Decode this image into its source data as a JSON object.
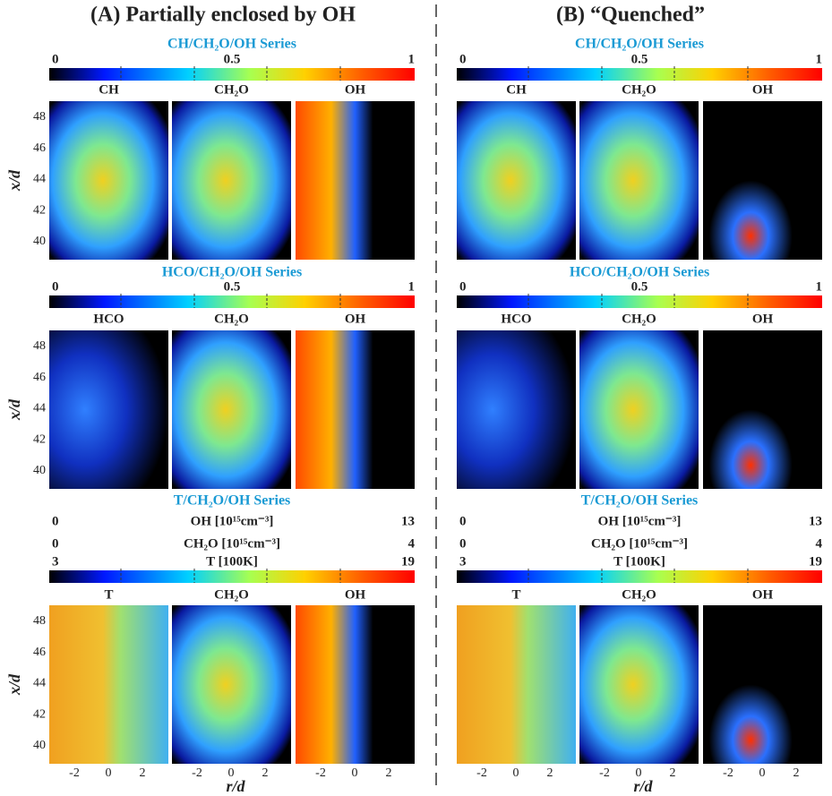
{
  "axes": {
    "y_label": "x/d",
    "y_ticks": [
      "40",
      "42",
      "44",
      "46",
      "48"
    ],
    "x_label": "r/d",
    "x_ticks": [
      "-2",
      "0",
      "2"
    ]
  },
  "columns": [
    {
      "title": "(A) Partially enclosed by OH",
      "rows": [
        {
          "series": "CH/CH₂O/OH Series",
          "colorbar": [
            "0",
            "0.5",
            "1"
          ],
          "images": [
            "CH",
            "CH₂O",
            "OH"
          ]
        },
        {
          "series": "HCO/CH₂O/OH Series",
          "colorbar": [
            "0",
            "0.5",
            "1"
          ],
          "images": [
            "HCO",
            "CH₂O",
            "OH"
          ]
        },
        {
          "series": "T/CH₂O/OH Series",
          "scales": [
            {
              "label": "OH [10¹⁵cm⁻³]",
              "min": "0",
              "max": "13"
            },
            {
              "label": "CH₂O [10¹⁵cm⁻³]",
              "min": "0",
              "max": "4"
            },
            {
              "label": "T [100K]",
              "min": "3",
              "max": "19"
            }
          ],
          "images": [
            "T",
            "CH₂O",
            "OH"
          ]
        }
      ]
    },
    {
      "title": "(B) “Quenched”",
      "rows": [
        {
          "series": "CH/CH₂O/OH Series",
          "colorbar": [
            "0",
            "0.5",
            "1"
          ],
          "images": [
            "CH",
            "CH₂O",
            "OH"
          ]
        },
        {
          "series": "HCO/CH₂O/OH Series",
          "colorbar": [
            "0",
            "0.5",
            "1"
          ],
          "images": [
            "HCO",
            "CH₂O",
            "OH"
          ]
        },
        {
          "series": "T/CH₂O/OH Series",
          "scales": [
            {
              "label": "OH [10¹⁵cm⁻³]",
              "min": "0",
              "max": "13"
            },
            {
              "label": "CH₂O [10¹⁵cm⁻³]",
              "min": "0",
              "max": "4"
            },
            {
              "label": "T [100K]",
              "min": "3",
              "max": "19"
            }
          ],
          "images": [
            "T",
            "CH₂O",
            "OH"
          ]
        }
      ]
    }
  ]
}
